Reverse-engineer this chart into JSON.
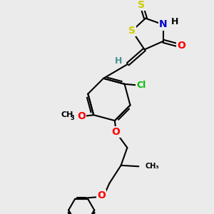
{
  "background_color": "#ebebeb",
  "atom_colors": {
    "S": "#cccc00",
    "N": "#0000cc",
    "O": "#ff0000",
    "Cl": "#00bb00",
    "C": "#000000",
    "H": "#4a9090"
  },
  "bond_color": "#000000",
  "bond_width": 1.5,
  "font_size_atoms": 10,
  "figsize": [
    3.0,
    3.0
  ],
  "dpi": 100
}
